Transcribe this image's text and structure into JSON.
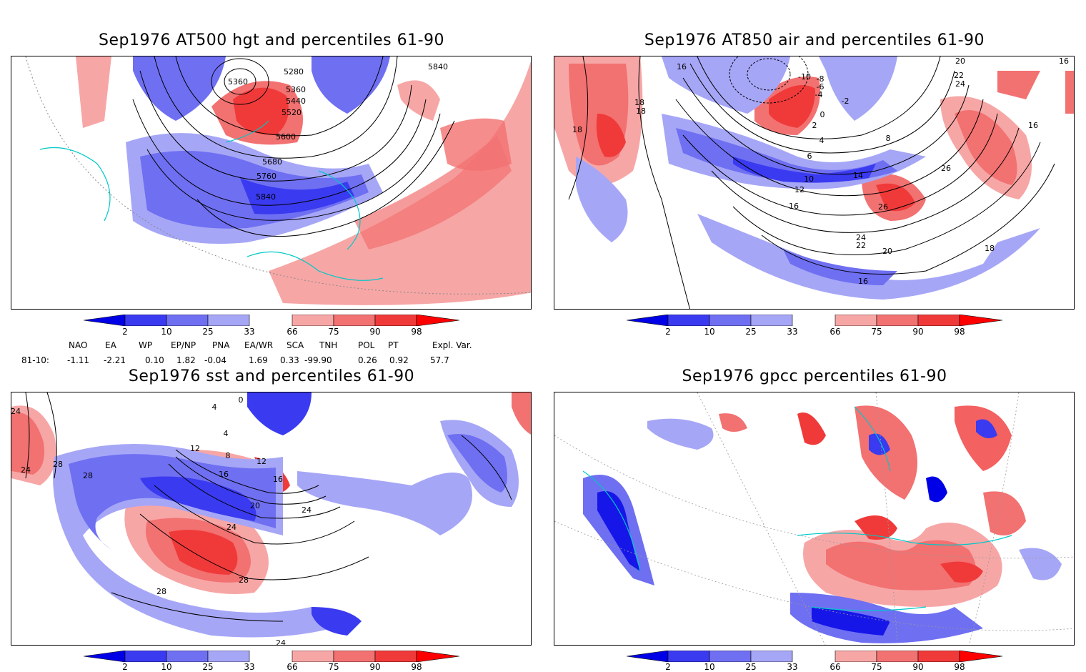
{
  "panels": [
    {
      "id": "hgt",
      "title": "Sep1976 AT500 hgt and percentiles 61-90",
      "contour_labels": [
        "5360",
        "5280",
        "5360",
        "5440",
        "5520",
        "5600",
        "5680",
        "5760",
        "5840",
        "5840"
      ]
    },
    {
      "id": "air",
      "title": "Sep1976 AT850 air and percentiles 61-90",
      "contour_labels": [
        "-10",
        "-8",
        "-6",
        "-4",
        "-2",
        "0",
        "2",
        "4",
        "6",
        "8",
        "10",
        "12",
        "14",
        "16",
        "16",
        "18",
        "18",
        "18",
        "20",
        "20",
        "22",
        "22",
        "24",
        "24",
        "26",
        "26",
        "16",
        "16",
        "16",
        "18"
      ]
    },
    {
      "id": "sst",
      "title": "Sep1976 sst and percentiles 61-90",
      "contour_labels": [
        "24",
        "28",
        "28",
        "4",
        "4",
        "8",
        "12",
        "12",
        "16",
        "16",
        "20",
        "24",
        "24",
        "24",
        "28",
        "28",
        "24",
        "0"
      ]
    },
    {
      "id": "gpcc",
      "title": "Sep1976 gpcc percentiles 61-90",
      "contour_labels": []
    }
  ],
  "colorbar": {
    "labels": [
      "2",
      "10",
      "25",
      "33",
      "66",
      "75",
      "90",
      "98"
    ],
    "colors": {
      "deep_blue": "#0000e6",
      "blue": "#3a3af0",
      "mid_blue": "#6f6ff2",
      "light_blue": "#a6a6f7",
      "light_red": "#f7a6a6",
      "mid_red": "#f27171",
      "red": "#f03a3a",
      "deep_red": "#ff0000"
    }
  },
  "teleconnections": {
    "headers": [
      "NAO",
      "EA",
      "WP",
      "EP/NP",
      "PNA",
      "EA/WR",
      "SCA",
      "TNH",
      "POL",
      "PT",
      "Expl. Var."
    ],
    "row_label": "81-10:",
    "values": [
      "-1.11",
      "-2.21",
      "0.10",
      "1.82",
      "-0.04",
      "1.69",
      "0.33",
      "-99.90",
      "0.26",
      "0.92",
      "57.7"
    ]
  },
  "map_colors": {
    "coast": "#00c8c8",
    "grid": "#999999",
    "contour": "#000000"
  }
}
